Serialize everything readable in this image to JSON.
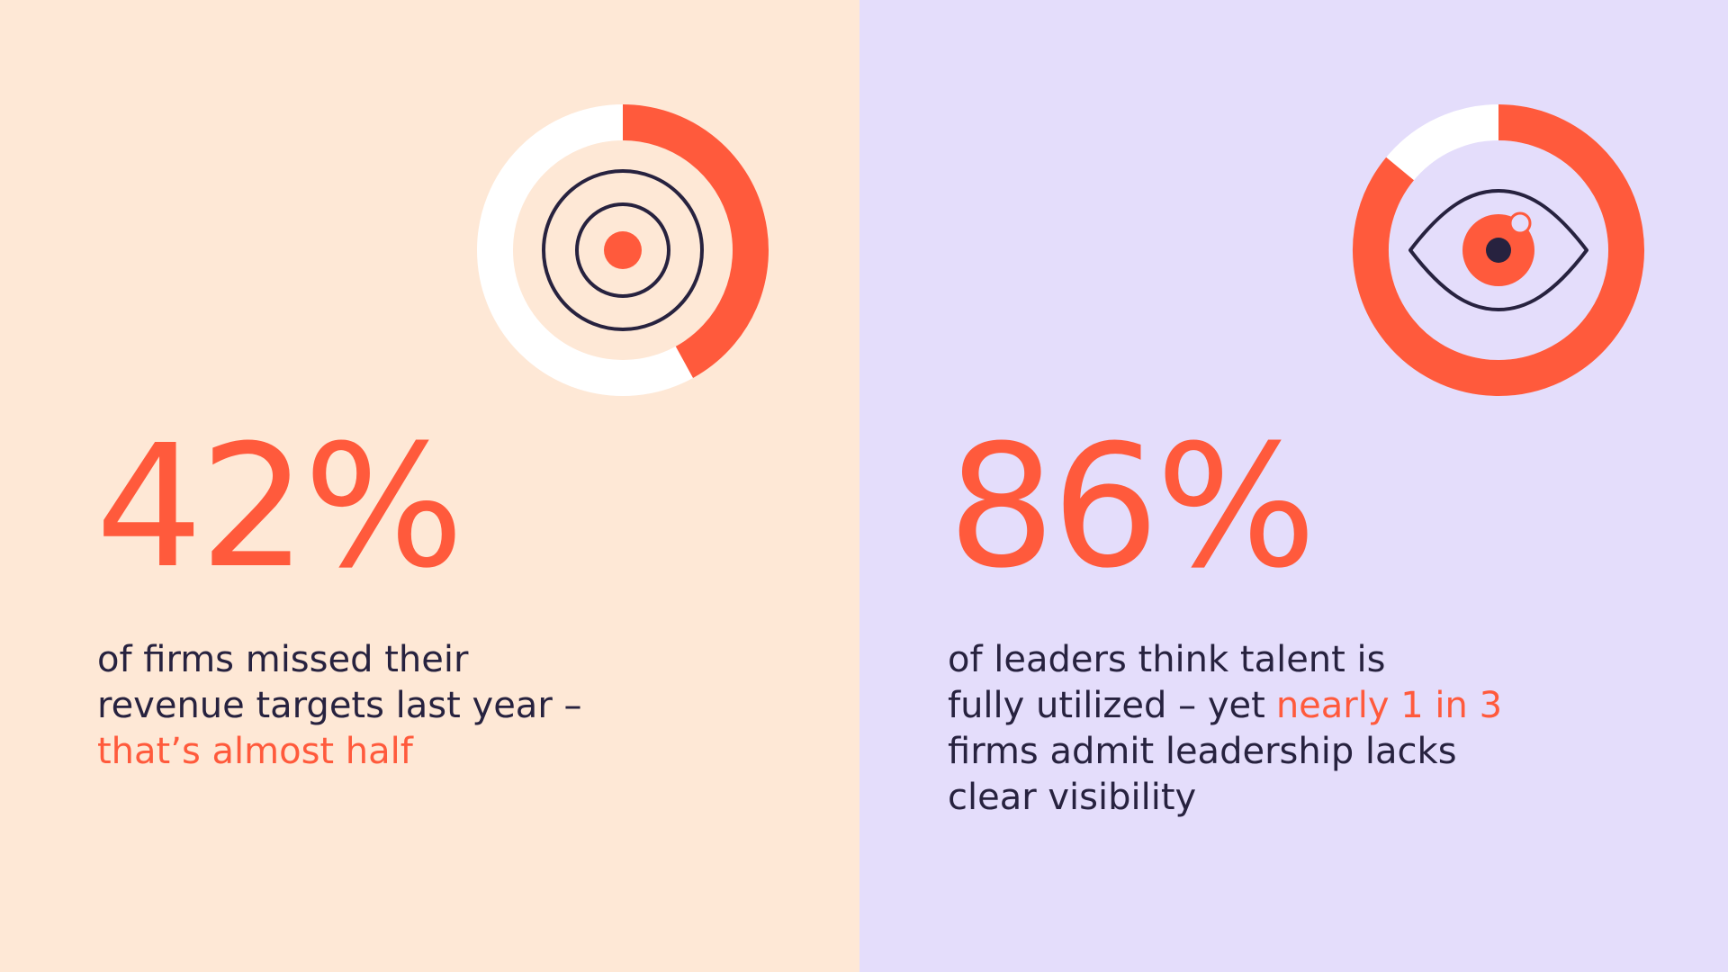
{
  "chart_data": [
    {
      "type": "donut",
      "values": [
        42
      ],
      "value_labels": [
        "42%"
      ],
      "color": "#ff5a3c",
      "track_color": "#ffffff",
      "lines": [
        [
          {
            "text": "of firms missed their"
          }
        ],
        [
          {
            "text": "revenue targets last year –"
          }
        ],
        [
          {
            "text": "that’s almost half",
            "color": "#ff5a3c"
          }
        ]
      ]
    },
    {
      "type": "donut",
      "values": [
        86
      ],
      "value_labels": [
        "86%"
      ],
      "color": "#ff5a3c",
      "track_color": "#ffffff",
      "lines": [
        [
          {
            "text": "of leaders think talent is"
          }
        ],
        [
          {
            "text": "fully utilized – yet"
          },
          {
            "text": "nearly 1 in 3",
            "color": "#ff5a3c"
          }
        ],
        [
          {
            "text": "firms admit leadership lacks"
          }
        ],
        [
          {
            "text": "clear visibility"
          }
        ]
      ]
    }
  ]
}
